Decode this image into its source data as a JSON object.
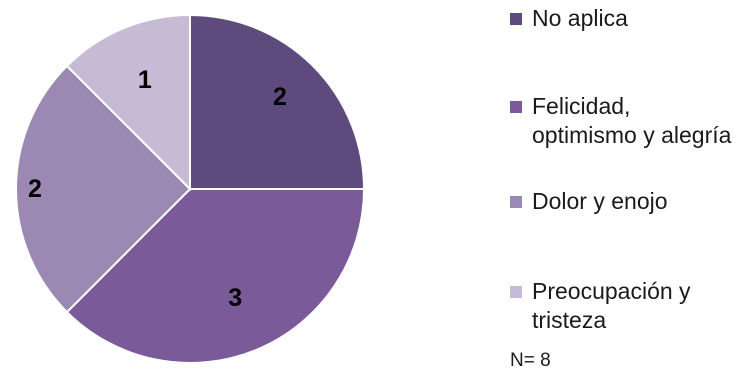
{
  "chart_data": {
    "type": "pie",
    "categories": [
      "No aplica",
      "Felicidad, optimismo y alegría",
      "Dolor y enojo",
      "Preocupación y tristeza"
    ],
    "values": [
      2,
      3,
      2,
      1
    ],
    "colors": [
      "#5f4a7e",
      "#7a5a99",
      "#9b89b4",
      "#c6bbd4"
    ],
    "start_angle_deg": 0,
    "direction": "clockwise",
    "legend": {
      "placement": "right"
    },
    "data_labels": [
      "2",
      "3",
      "2",
      "1"
    ]
  },
  "note": "N= 8"
}
